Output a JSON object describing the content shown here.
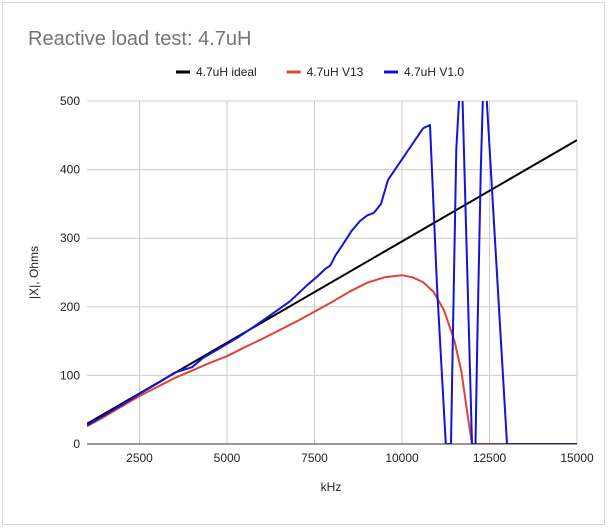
{
  "chart_data": {
    "type": "line",
    "title": "Reactive load test: 4.7uH",
    "xlabel": "kHz",
    "ylabel": "|X|, Ohms",
    "xlim": [
      1000,
      15000
    ],
    "ylim": [
      0,
      500
    ],
    "x_ticks": [
      2500,
      5000,
      7500,
      10000,
      12500,
      15000
    ],
    "y_ticks": [
      0,
      100,
      200,
      300,
      400,
      500
    ],
    "grid": true,
    "legend_position": "top",
    "series": [
      {
        "name": "4.7uH ideal",
        "color": "#000000",
        "x": [
          1000,
          15000
        ],
        "y": [
          29.5,
          443
        ]
      },
      {
        "name": "4.7uH V13",
        "color": "#db4437",
        "x": [
          1000,
          1500,
          2000,
          2500,
          3000,
          3500,
          4000,
          4500,
          5000,
          5500,
          6000,
          6500,
          7000,
          7500,
          8000,
          8500,
          9000,
          9500,
          10000,
          10300,
          10600,
          10900,
          11200,
          11500,
          11700,
          11850,
          12000,
          13000,
          15000
        ],
        "y": [
          26,
          40,
          55,
          70,
          83,
          96,
          107,
          118,
          128,
          141,
          153,
          166,
          179,
          193,
          207,
          222,
          235,
          243,
          246,
          243,
          236,
          222,
          195,
          150,
          105,
          50,
          0,
          0,
          0
        ]
      },
      {
        "name": "4.7uH V1.0",
        "color": "#1414d4",
        "x": [
          1000,
          1500,
          2000,
          2500,
          3000,
          3500,
          4000,
          4300,
          4800,
          5300,
          5800,
          6300,
          6800,
          7300,
          7600,
          7800,
          7950,
          8100,
          8300,
          8550,
          8800,
          9000,
          9200,
          9400,
          9600,
          9800,
          10000,
          10200,
          10400,
          10600,
          10800,
          11000,
          11250,
          11350,
          11400,
          11450,
          11550,
          11650,
          11720,
          12000,
          12100,
          12150,
          12250,
          12320,
          12400,
          13000,
          15000
        ],
        "y": [
          27,
          42,
          57,
          73,
          88,
          104,
          112,
          125,
          140,
          155,
          172,
          190,
          208,
          232,
          245,
          255,
          260,
          275,
          290,
          310,
          325,
          333,
          337,
          350,
          385,
          400,
          415,
          430,
          445,
          460,
          465,
          230,
          0,
          0,
          0,
          150,
          430,
          520,
          520,
          0,
          0,
          150,
          400,
          520,
          520,
          0,
          0
        ]
      }
    ]
  }
}
